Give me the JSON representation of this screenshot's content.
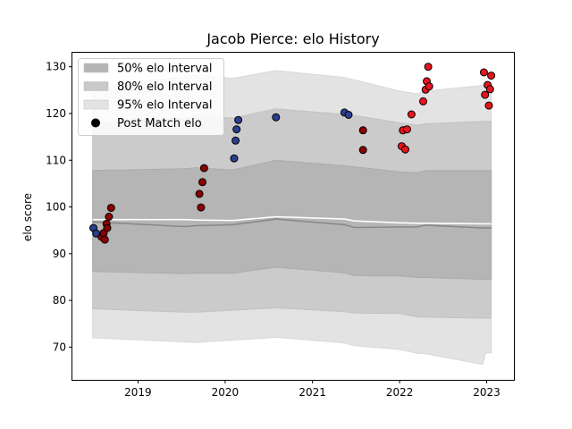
{
  "chart_data": {
    "type": "scatter",
    "title": "Jacob Pierce: elo History",
    "xlabel": "",
    "ylabel": "elo score",
    "x_axis_type": "date",
    "xlim": [
      "2018-04-01",
      "2023-04-25"
    ],
    "ylim": [
      63,
      133
    ],
    "x_ticks": [
      "2019",
      "2020",
      "2021",
      "2022",
      "2023"
    ],
    "y_ticks": [
      70,
      80,
      90,
      100,
      110,
      120,
      130
    ],
    "grid": false,
    "legend_position": "top-left",
    "legend": [
      {
        "label": "50% elo Interval",
        "kind": "band",
        "color": "#b5b5b5"
      },
      {
        "label": "80% elo Interval",
        "kind": "band",
        "color": "#c9c9c9"
      },
      {
        "label": "95% elo Interval",
        "kind": "band",
        "color": "#e3e3e3"
      },
      {
        "label": "Post Match elo",
        "kind": "marker",
        "color": "#000000"
      }
    ],
    "colors": {
      "band_50": "#b5b5b5",
      "band_80": "#cbcbcb",
      "band_95": "#e3e3e3",
      "median_line": "#888888",
      "mean_line": "#ffffff",
      "point_blue": "#2a3f8f",
      "point_darkred": "#8b0000",
      "point_red": "#e8141c"
    },
    "intervals": {
      "x": [
        "2018-06-25",
        "2019-07-15",
        "2019-09-01",
        "2020-02-01",
        "2020-08-01",
        "2021-05-15",
        "2021-06-25",
        "2022-01-01",
        "2022-03-15",
        "2022-04-20",
        "2022-12-15",
        "2022-12-28",
        "2023-01-20"
      ],
      "p95_high": [
        125.5,
        128,
        128.3,
        127.5,
        129.2,
        127.7,
        127.2,
        124.8,
        124.2,
        124.8,
        126,
        126.3,
        126.3
      ],
      "p80_high": [
        118,
        119,
        119.5,
        119,
        121,
        119.8,
        119.6,
        118,
        117.5,
        117.8,
        118.3,
        118.3,
        118.3
      ],
      "p50_high": [
        107.8,
        108.2,
        108.4,
        107.9,
        110,
        108.8,
        108.6,
        107.5,
        107.3,
        107.8,
        107.8,
        107.8,
        107.8
      ],
      "mean": [
        97.3,
        97.3,
        97.2,
        97.1,
        97.9,
        97.4,
        97,
        96.6,
        96.5,
        96.5,
        96.4,
        96.4,
        96.4
      ],
      "median": [
        96.8,
        95.8,
        96,
        96.2,
        97.4,
        96.2,
        95.6,
        95.7,
        95.7,
        96.1,
        95.5,
        95.5,
        95.5
      ],
      "p50_low": [
        86.2,
        85.7,
        85.8,
        85.8,
        87.1,
        85.9,
        85.3,
        85.2,
        84.9,
        84.9,
        84.5,
        84.5,
        84.5
      ],
      "p80_low": [
        78.2,
        77.5,
        77.5,
        77.9,
        78.4,
        77.6,
        77.3,
        77.2,
        76.5,
        76.4,
        76.2,
        76.2,
        76.2
      ],
      "p95_low": [
        72,
        71.1,
        71,
        71.5,
        72.1,
        70.9,
        70.3,
        69.5,
        68.7,
        68.6,
        66.3,
        68.8,
        68.8
      ]
    },
    "series": [
      {
        "color_key": "point_blue",
        "points": [
          {
            "x": "2018-06-28",
            "y": 95.5
          },
          {
            "x": "2018-07-10",
            "y": 94.3
          },
          {
            "x": "2020-02-08",
            "y": 110.4
          },
          {
            "x": "2020-02-14",
            "y": 114.2
          },
          {
            "x": "2020-02-18",
            "y": 116.6
          },
          {
            "x": "2020-02-25",
            "y": 118.6
          },
          {
            "x": "2020-08-01",
            "y": 119.2
          },
          {
            "x": "2021-05-15",
            "y": 120.2
          },
          {
            "x": "2021-06-01",
            "y": 119.7
          }
        ]
      },
      {
        "color_key": "point_darkred",
        "points": [
          {
            "x": "2018-08-01",
            "y": 93.6
          },
          {
            "x": "2018-08-10",
            "y": 94.4
          },
          {
            "x": "2018-08-15",
            "y": 93.0
          },
          {
            "x": "2018-08-22",
            "y": 96.4
          },
          {
            "x": "2018-08-25",
            "y": 95.5
          },
          {
            "x": "2018-09-01",
            "y": 97.9
          },
          {
            "x": "2018-09-10",
            "y": 99.8
          },
          {
            "x": "2019-09-15",
            "y": 102.8
          },
          {
            "x": "2019-09-22",
            "y": 99.9
          },
          {
            "x": "2019-09-28",
            "y": 105.3
          },
          {
            "x": "2019-10-05",
            "y": 108.3
          },
          {
            "x": "2021-08-01",
            "y": 116.4
          },
          {
            "x": "2021-08-01",
            "y": 112.2
          }
        ]
      },
      {
        "color_key": "point_red",
        "points": [
          {
            "x": "2022-01-10",
            "y": 113.0
          },
          {
            "x": "2022-01-15",
            "y": 116.4
          },
          {
            "x": "2022-01-25",
            "y": 112.3
          },
          {
            "x": "2022-02-01",
            "y": 116.6
          },
          {
            "x": "2022-02-20",
            "y": 119.8
          },
          {
            "x": "2022-04-10",
            "y": 122.6
          },
          {
            "x": "2022-04-20",
            "y": 125.1
          },
          {
            "x": "2022-04-25",
            "y": 126.9
          },
          {
            "x": "2022-05-01",
            "y": 130.0
          },
          {
            "x": "2022-05-05",
            "y": 125.8
          },
          {
            "x": "2022-12-20",
            "y": 128.8
          },
          {
            "x": "2022-12-25",
            "y": 124.0
          },
          {
            "x": "2023-01-05",
            "y": 126.1
          },
          {
            "x": "2023-01-10",
            "y": 121.7
          },
          {
            "x": "2023-01-15",
            "y": 125.2
          },
          {
            "x": "2023-01-20",
            "y": 128.1
          }
        ]
      }
    ]
  }
}
